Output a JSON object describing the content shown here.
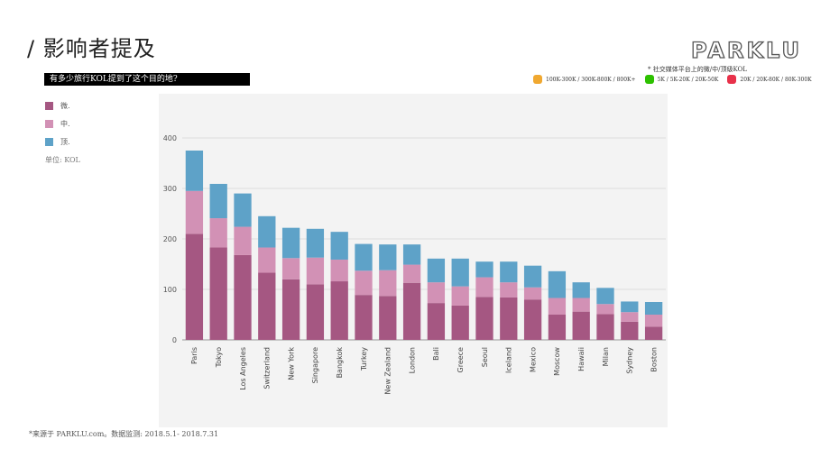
{
  "header": {
    "title": "/ 影响者提及",
    "logo_text": "PARKLU",
    "question": "有多少旅行KOL提到了这个目的地?"
  },
  "platform_note": "* 社交媒体平台上的微/中/顶级KOL",
  "platforms": [
    {
      "icon": "weibo-icon",
      "color": "#f0a830",
      "text": "100K-300K / 300K-800K / 800K+"
    },
    {
      "icon": "wechat-icon",
      "color": "#2dc100",
      "text": "5K / 5K-20K / 20K-50K"
    },
    {
      "icon": "xiaohongshu-icon",
      "color": "#e8314a",
      "text": "20K / 20K-80K / 80K-300K"
    }
  ],
  "legend": [
    {
      "label": "微.",
      "color": "#a55782"
    },
    {
      "label": "中.",
      "color": "#d291b5"
    },
    {
      "label": "顶.",
      "color": "#5ea2c8"
    }
  ],
  "unit_label": "单位: KOL",
  "footnote": "*来源于 PARKLU.com。数据监测: 2018.5.1- 2018.7.31",
  "chart_data": {
    "type": "bar",
    "stacked": true,
    "title": "",
    "xlabel": "",
    "ylabel": "",
    "ylim": [
      0,
      400
    ],
    "yticks": [
      0,
      100,
      200,
      300,
      400
    ],
    "categories": [
      "Paris",
      "Tokyo",
      "Los Angeles",
      "Switzerland",
      "New York",
      "Singapore",
      "Bangkok",
      "Turkey",
      "New Zealand",
      "London",
      "Bali",
      "Greece",
      "Seoul",
      "Iceland",
      "Mexico",
      "Moscow",
      "Hawaii",
      "Milan",
      "Sydney",
      "Boston"
    ],
    "series": [
      {
        "name": "微.",
        "color": "#a55782",
        "values": [
          210,
          183,
          168,
          133,
          120,
          110,
          116,
          89,
          87,
          113,
          73,
          68,
          85,
          84,
          80,
          50,
          56,
          51,
          36,
          26
        ]
      },
      {
        "name": "中.",
        "color": "#d291b5",
        "values": [
          85,
          58,
          56,
          50,
          42,
          53,
          43,
          48,
          51,
          36,
          41,
          38,
          39,
          30,
          24,
          33,
          27,
          20,
          19,
          24
        ]
      },
      {
        "name": "顶.",
        "color": "#5ea2c8",
        "values": [
          80,
          68,
          66,
          62,
          60,
          57,
          55,
          53,
          51,
          40,
          47,
          55,
          31,
          41,
          43,
          53,
          31,
          32,
          21,
          25
        ]
      }
    ]
  }
}
